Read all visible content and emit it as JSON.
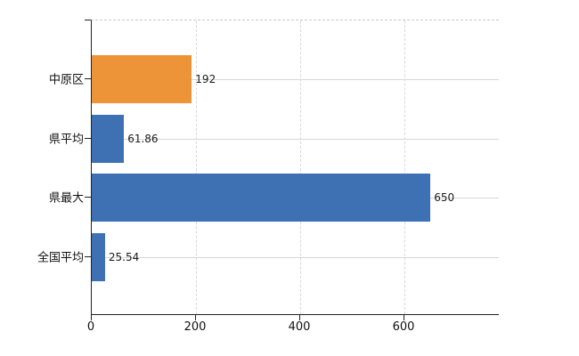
{
  "chart_data": {
    "type": "bar",
    "orientation": "horizontal",
    "title": "",
    "xlabel": "",
    "ylabel": "",
    "categories": [
      "中原区",
      "県平均",
      "県最大",
      "全国平均"
    ],
    "values": [
      192,
      61.86,
      650,
      25.54
    ],
    "value_labels": [
      "192",
      "61.86",
      "650",
      "25.54"
    ],
    "bar_colors": [
      "#ED9338",
      "#3E71B4",
      "#3E71B4",
      "#3E71B4"
    ],
    "x_ticks": [
      0,
      200,
      400,
      600
    ],
    "x_tick_labels": [
      "0",
      "200",
      "400",
      "600"
    ],
    "xlim": [
      0,
      783
    ],
    "grid": true,
    "legend": false
  },
  "colors": {
    "bar_orange": "#ED9338",
    "bar_blue": "#3E71B4",
    "horizontal_grid": "#d3d9d3",
    "vertical_grid": "#d8d8d8",
    "axis": "#222222",
    "background": "#ffffff",
    "text": "#111111"
  }
}
